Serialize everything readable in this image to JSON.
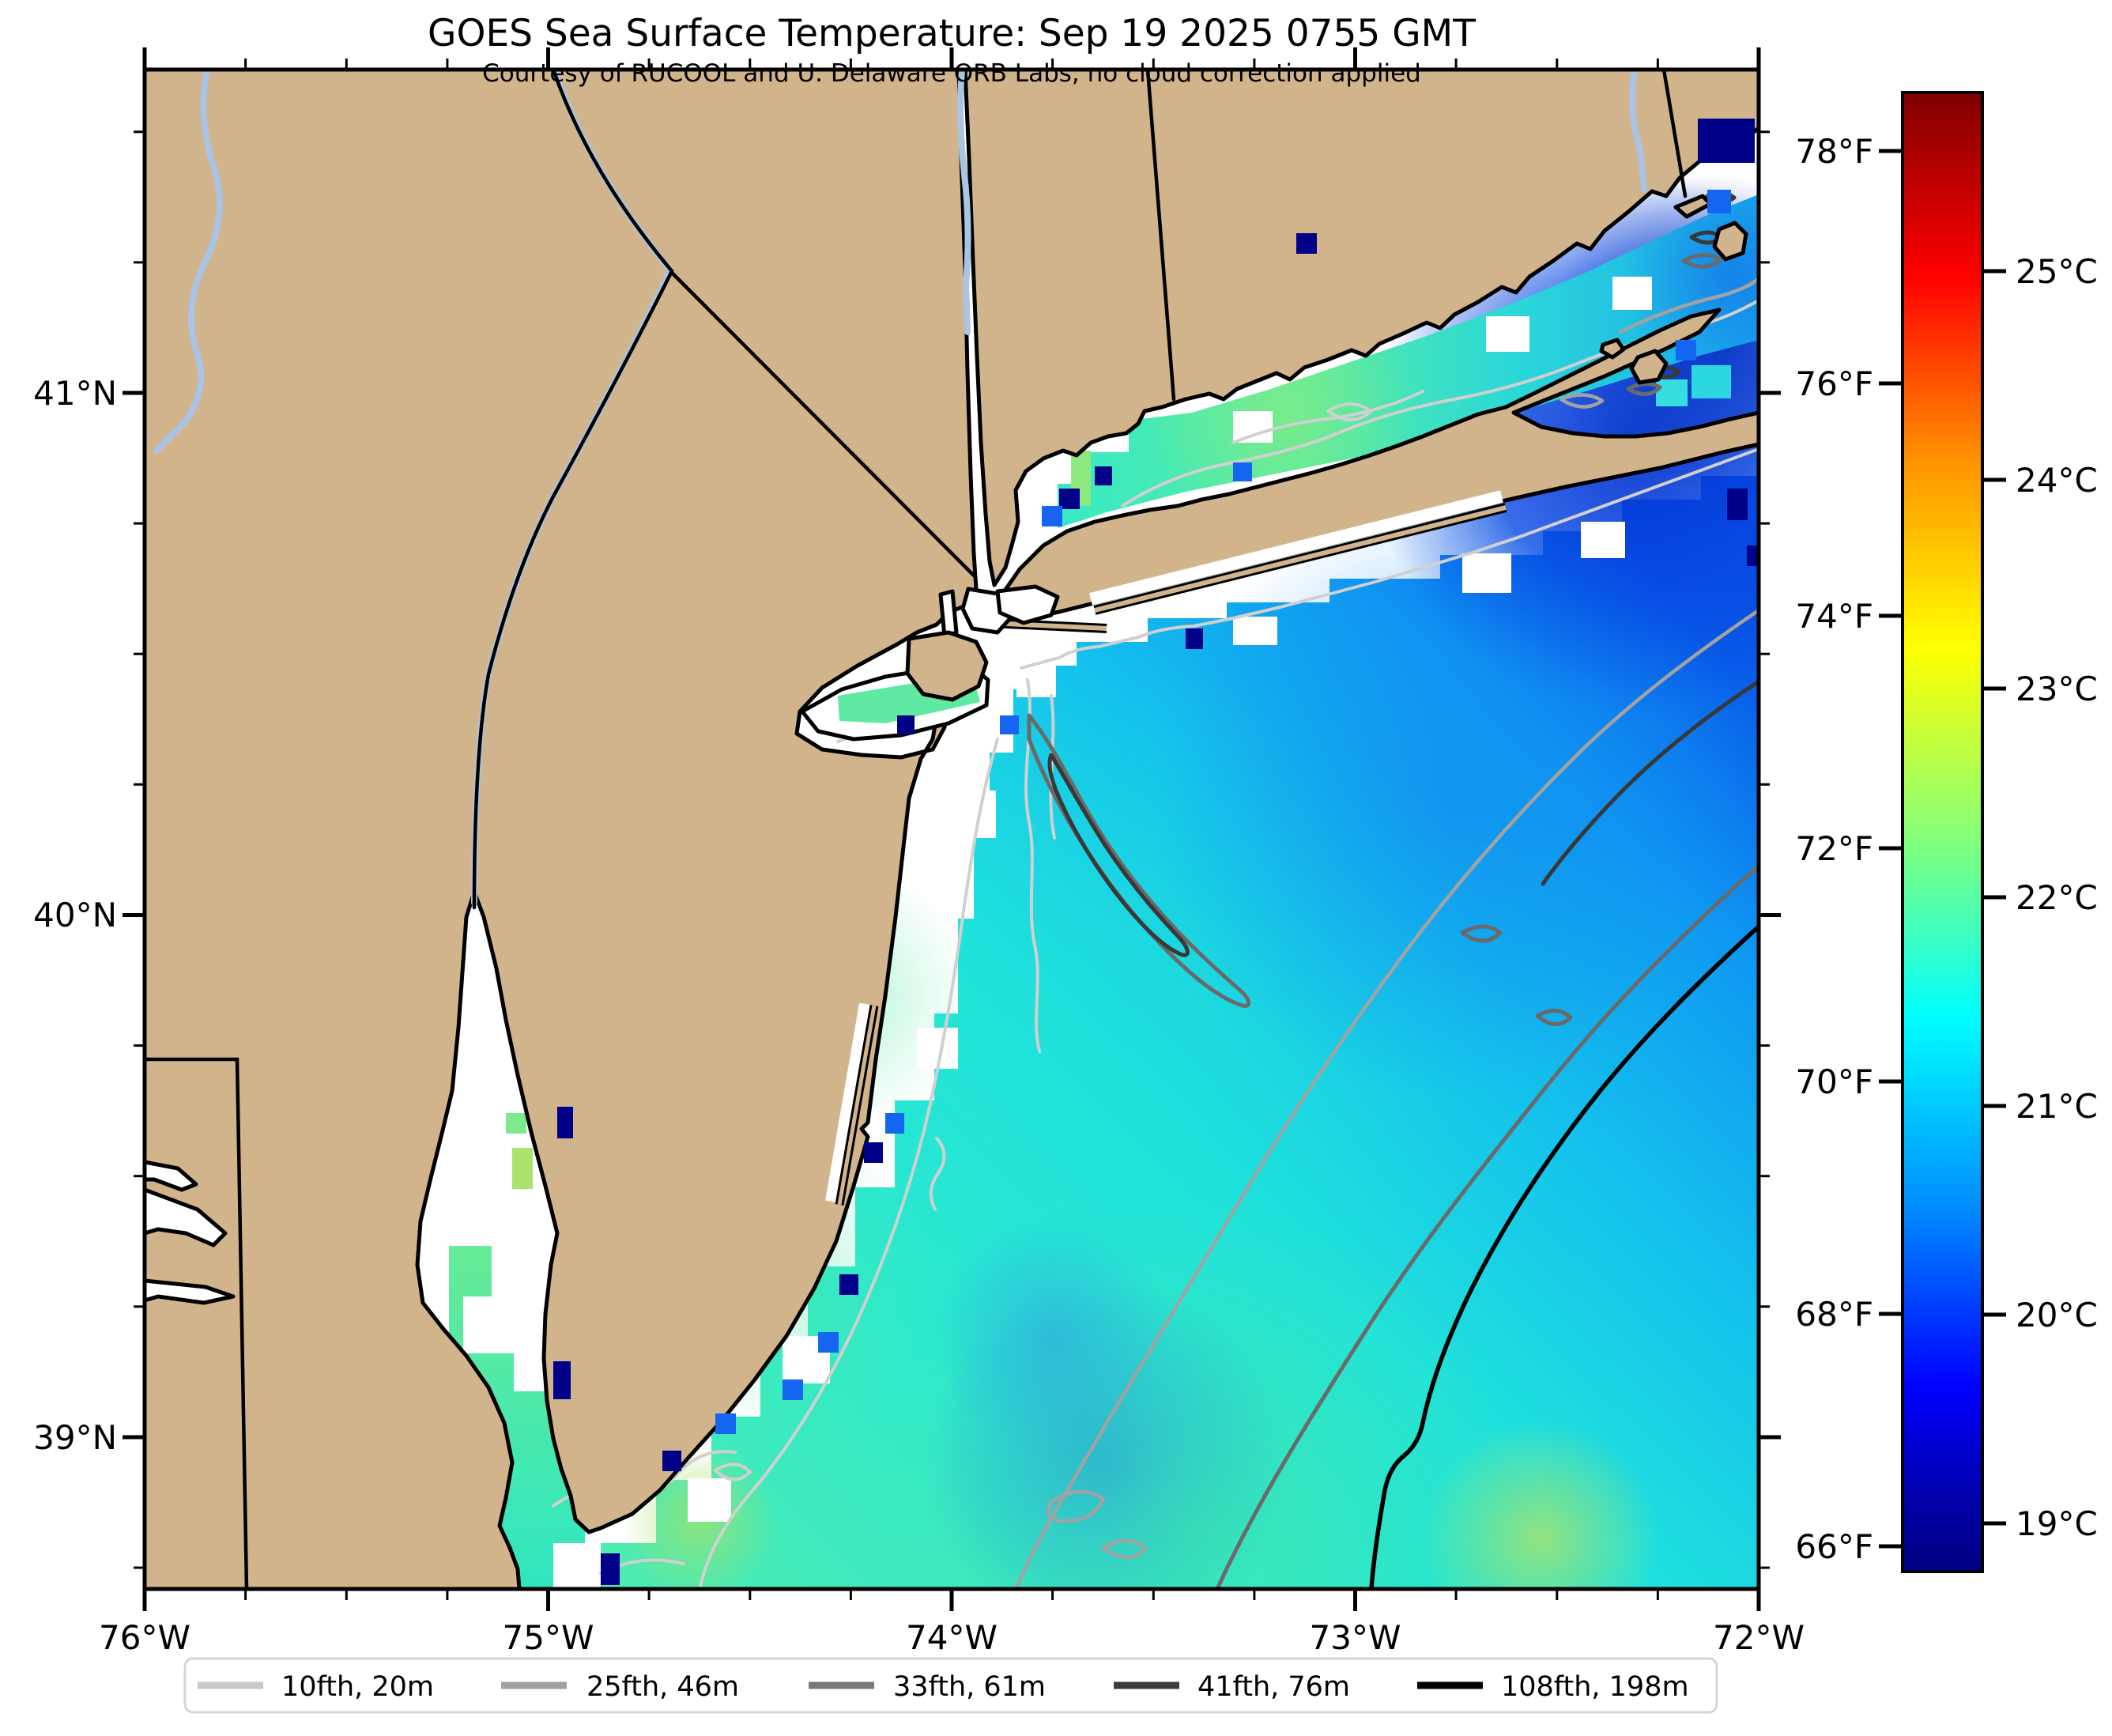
{
  "header": {
    "title": "GOES Sea Surface Temperature: Sep 19 2025 0755 GMT",
    "subtitle": "Courtesy of RUCOOL and U. Delaware ORB Labs, no cloud correction applied"
  },
  "axes": {
    "x_tick_labels": [
      "76°W",
      "75°W",
      "74°W",
      "73°W",
      "72°W"
    ],
    "y_tick_labels": [
      "41°N",
      "40°N",
      "39°N"
    ]
  },
  "colorbar": {
    "fahrenheit_tick_labels": [
      "78°F",
      "76°F",
      "74°F",
      "72°F",
      "70°F",
      "68°F",
      "66°F"
    ],
    "celsius_tick_labels": [
      "25°C",
      "24°C",
      "23°C",
      "22°C",
      "21°C",
      "20°C",
      "19°C"
    ],
    "gradient_top_to_bottom": [
      "#800000",
      "#b40000",
      "#ff0000",
      "#ff9400",
      "#ffff00",
      "#8aff75",
      "#00ffff",
      "#0090ff",
      "#0000ff",
      "#0000a0",
      "#000083"
    ],
    "gradient_offsets_pct": [
      0,
      5,
      12.5,
      25,
      37.5,
      50,
      62.5,
      75,
      87.5,
      96,
      100
    ]
  },
  "legend": {
    "entries": [
      {
        "label": "10fth, 20m",
        "color": "#c8c8c8"
      },
      {
        "label": "25fth, 46m",
        "color": "#a0a0a0"
      },
      {
        "label": "33fth, 61m",
        "color": "#787878"
      },
      {
        "label": "41fth, 76m",
        "color": "#3c3c3c"
      },
      {
        "label": "108fth, 198m",
        "color": "#000000"
      }
    ]
  },
  "colors": {
    "land": "#d2b48c",
    "coastline": "#000000",
    "river": "#a9c4e4",
    "no_data": "#ffffff",
    "cold_pixel_navy": "#000089",
    "cold_pixel_blue": "#1565f0",
    "contour_10fth": "#d0d0d0",
    "contour_25fth": "#a2a2a2",
    "contour_33fth": "#6a6a6a",
    "contour_41fth": "#383838",
    "contour_108fth": "#000000",
    "sea_warm_green": "#50ecae",
    "sea_turquoise": "#2ce9cc",
    "sea_cyan": "#14c2ec",
    "sea_blue": "#0f97f2",
    "sea_deep_blue": "#0434cf",
    "sea_yellow_green": "#b8e360"
  }
}
